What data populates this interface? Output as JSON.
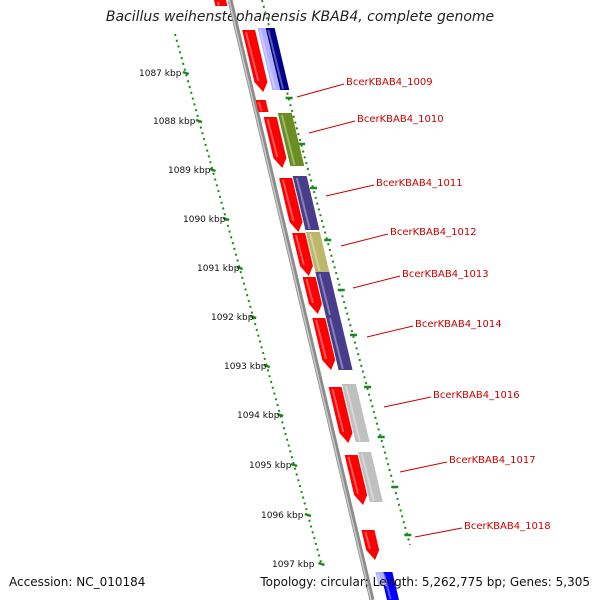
{
  "title": "Bacillus weihenstephanensis KBAB4, complete genome",
  "accession": "Accession: NC_010184",
  "topology": "Topology: circular; Length: 5,262,775 bp; Genes: 5,305",
  "kbp_labels": [
    "1087 kbp",
    "1088 kbp",
    "1089 kbp",
    "1090 kbp",
    "1091 kbp",
    "1092 kbp",
    "1093 kbp",
    "1094 kbp",
    "1095 kbp",
    "1096 kbp",
    "1097 kbp"
  ],
  "gene_labels": [
    "BcerKBAB4_1009",
    "BcerKBAB4_1010",
    "BcerKBAB4_1011",
    "BcerKBAB4_1012",
    "BcerKBAB4_1013",
    "BcerKBAB4_1014",
    "BcerKBAB4_1016",
    "BcerKBAB4_1017",
    "BcerKBAB4_1018"
  ],
  "colors": {
    "gene": "#ff0000",
    "backbone": "#888888",
    "tick": "#1a8a1a",
    "label": "#cc0000",
    "navy": "#00008b",
    "lavender": "#b0b0ff",
    "olive": "#6b8e23",
    "slate": "#483d8b",
    "khaki": "#bdb76b",
    "gray": "#c0c0c0",
    "blue": "#0000ff"
  }
}
